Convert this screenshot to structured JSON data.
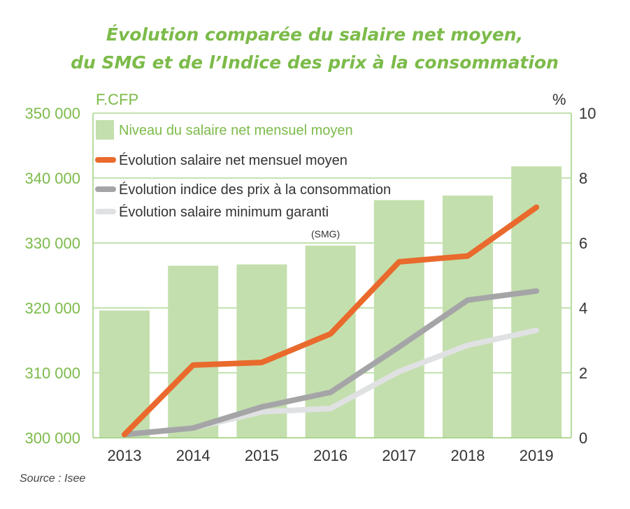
{
  "chart_data": {
    "type": "bar+line",
    "title": [
      "Évolution comparée du salaire net moyen,",
      "du SMG et de l’Indice des prix à la consommation"
    ],
    "categories": [
      "2013",
      "2014",
      "2015",
      "2016",
      "2017",
      "2018",
      "2019"
    ],
    "y_left": {
      "label": "F.CFP",
      "range": [
        300000,
        350000
      ],
      "ticks": [
        "300 000",
        "310 000",
        "320 000",
        "330 000",
        "340 000",
        "350 000"
      ]
    },
    "y_right": {
      "label": "%",
      "range": [
        0,
        10
      ],
      "ticks": [
        "0",
        "2",
        "4",
        "6",
        "8",
        "10"
      ]
    },
    "grid": true,
    "legend_placement": "top-left",
    "series": [
      {
        "name": "Niveau du salaire net mensuel moyen",
        "type": "bar",
        "axis": "left",
        "color": "#c3dfad",
        "values": [
          319600,
          326500,
          326700,
          329600,
          336600,
          337300,
          341800
        ]
      },
      {
        "name": "Évolution salaire net mensuel moyen",
        "type": "line",
        "axis": "right",
        "color": "#e96a2c",
        "values": [
          0.1,
          2.24,
          2.32,
          3.2,
          5.42,
          5.6,
          7.1
        ]
      },
      {
        "name": "Évolution indice des prix à la consommation",
        "type": "line",
        "axis": "right",
        "color": "#a5a5a8",
        "values": [
          0.1,
          0.3,
          0.95,
          1.4,
          2.8,
          4.24,
          4.52
        ]
      },
      {
        "name": "Évolution salaire minimum garanti",
        "name_suffix": "(SMG)",
        "type": "line",
        "axis": "right",
        "color": "#e0e1e2",
        "values": [
          0.1,
          0.3,
          0.8,
          0.9,
          2.04,
          2.85,
          3.31
        ]
      }
    ],
    "source": "Source : Isee"
  }
}
